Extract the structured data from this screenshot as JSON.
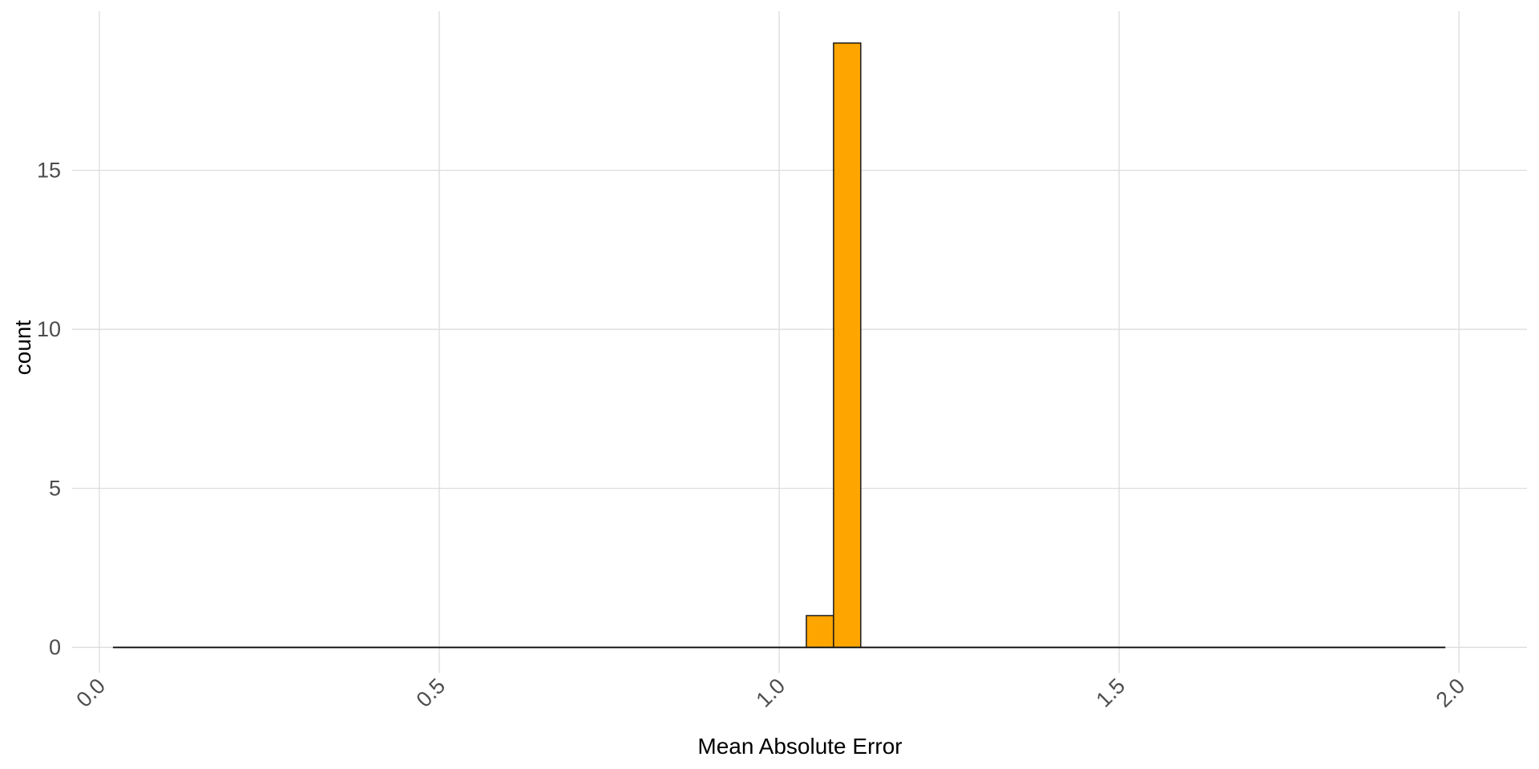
{
  "chart_data": {
    "type": "bar",
    "title": "",
    "xlabel": "Mean Absolute Error",
    "ylabel": "count",
    "xlim": [
      -0.04,
      2.1
    ],
    "ylim": [
      -0.8,
      20
    ],
    "x_ticks": [
      0.0,
      0.5,
      1.0,
      1.5,
      2.0
    ],
    "x_tick_labels": [
      "0.0",
      "0.5",
      "1.0",
      "1.5",
      "2.0"
    ],
    "y_ticks": [
      0,
      5,
      10,
      15
    ],
    "y_tick_labels": [
      "0",
      "5",
      "10",
      "15"
    ],
    "grid": true,
    "legend": "none",
    "bar_color": "#FFA500",
    "bar_outline_color": "#1a1a1a",
    "histogram_range": [
      0.02,
      1.98
    ],
    "bins": [
      {
        "x_start": 1.04,
        "x_end": 1.08,
        "count": 1
      },
      {
        "x_start": 1.08,
        "x_end": 1.12,
        "count": 19
      }
    ]
  }
}
